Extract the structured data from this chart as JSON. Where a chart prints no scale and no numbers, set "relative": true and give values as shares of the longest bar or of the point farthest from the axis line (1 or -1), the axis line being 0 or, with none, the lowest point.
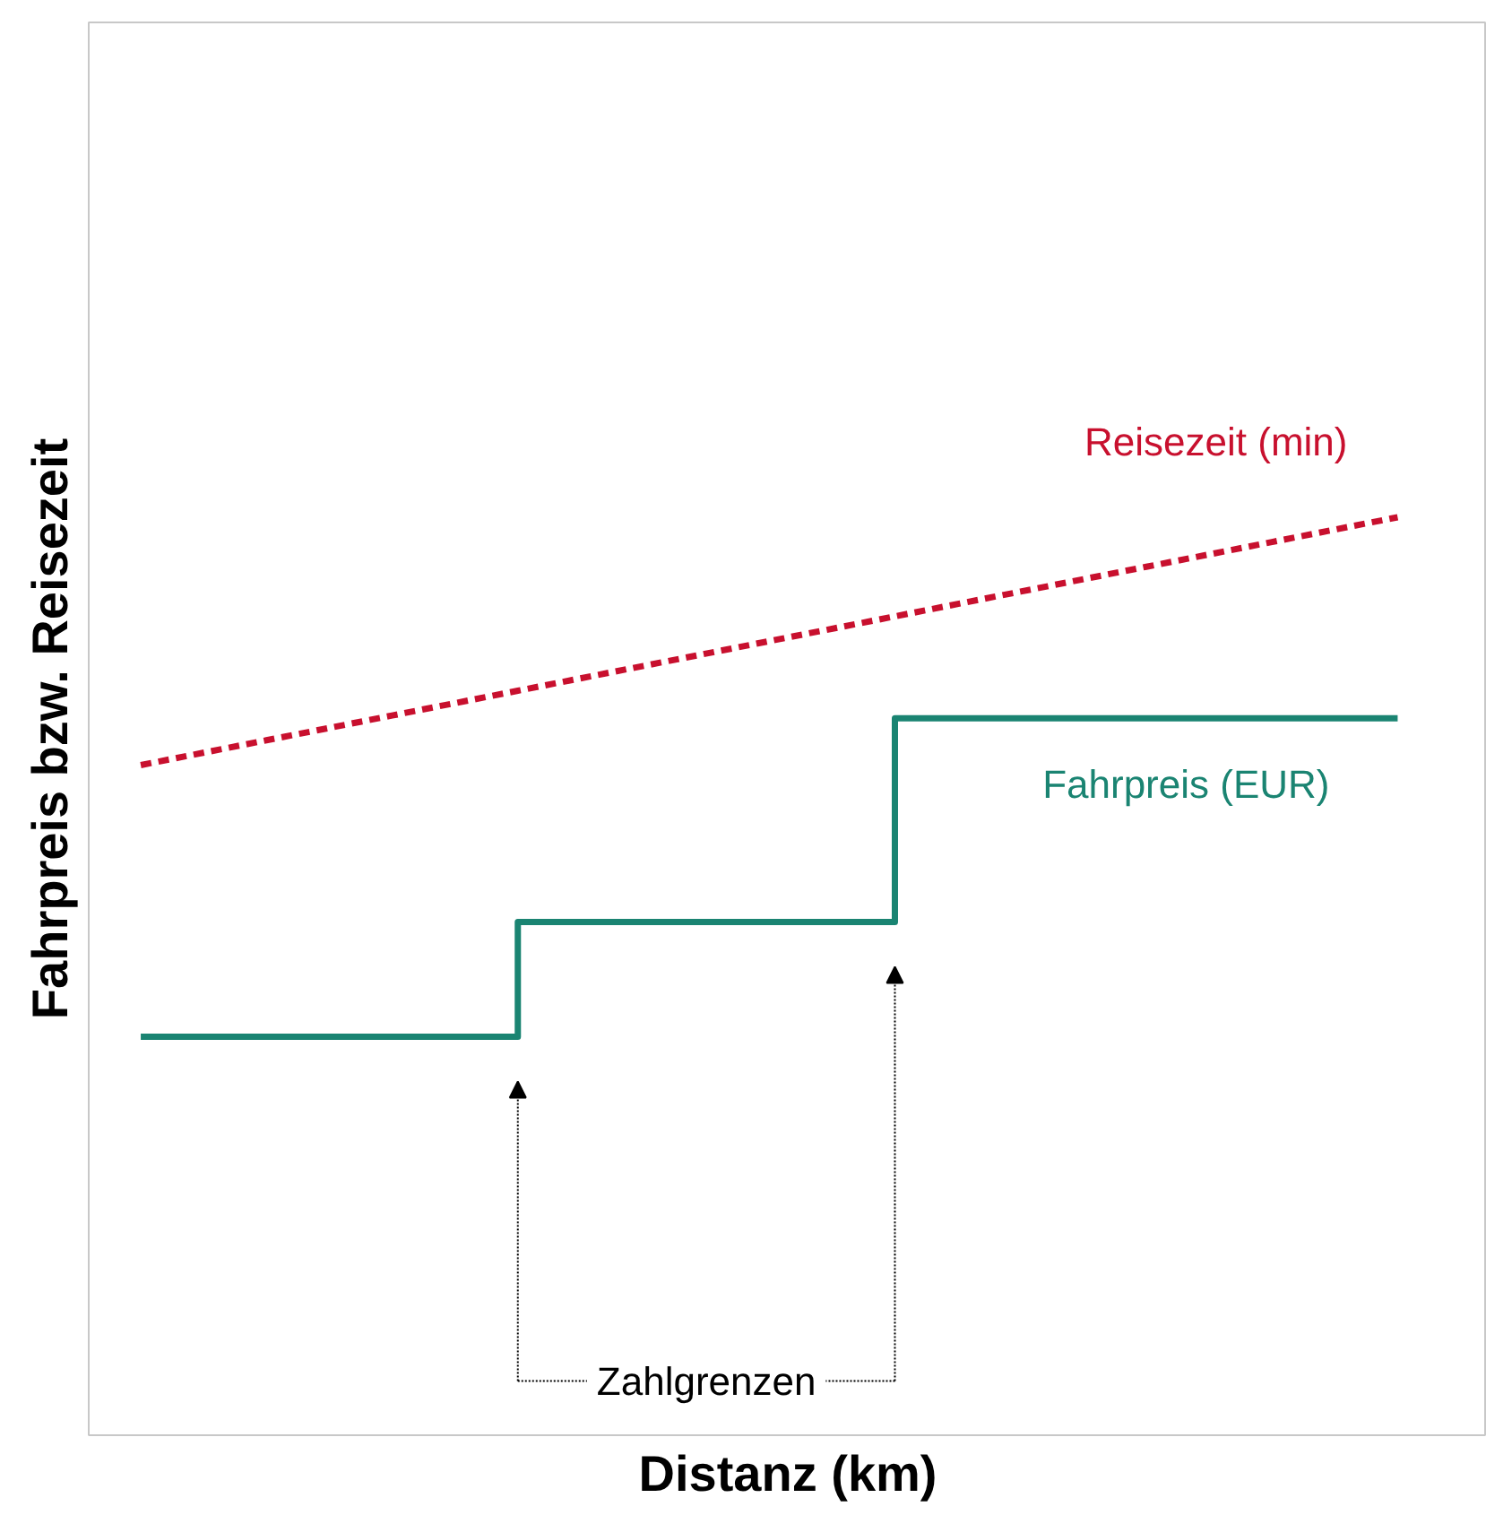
{
  "chart_data": {
    "type": "line",
    "xlabel": "Distanz (km)",
    "ylabel": "Fahrpreis bzw. Reisezeit",
    "relative": true,
    "grid": false,
    "legend": false,
    "tick_labels": false,
    "categories": [
      null,
      null,
      null,
      null,
      null,
      null,
      null,
      null,
      null,
      null,
      null
    ],
    "series": [
      {
        "name": "Reisezeit (min)",
        "line_style": "dashed",
        "color": "#c8102e",
        "values": [
          0.73,
          0.757,
          0.784,
          0.811,
          0.838,
          0.865,
          0.892,
          0.919,
          0.946,
          0.973,
          1.0
        ]
      },
      {
        "name": "Fahrpreis (EUR)",
        "type": "step",
        "line_style": "solid",
        "color": "#1a8472",
        "values": [
          0.434,
          0.434,
          0.434,
          0.559,
          0.559,
          0.559,
          0.781,
          0.781,
          0.781,
          0.781,
          0.781
        ]
      }
    ],
    "annotations": [
      "Zahlgrenzen"
    ]
  }
}
